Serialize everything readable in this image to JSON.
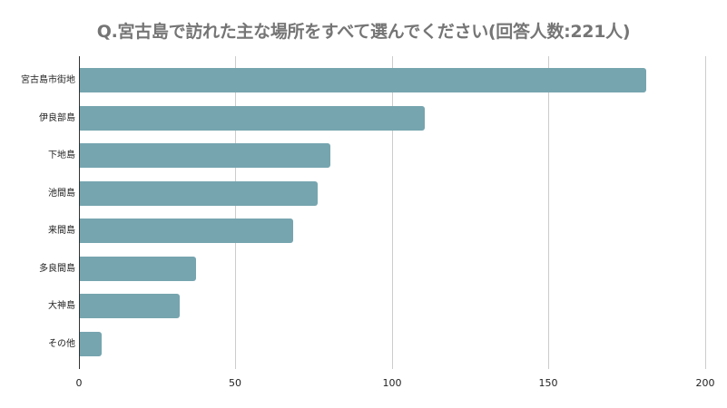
{
  "chart_data": {
    "type": "bar",
    "orientation": "horizontal",
    "title": "Q.宮古島で訪れた主な場所をすべて選んでください(回答人数:221人)",
    "xlabel": "",
    "ylabel": "",
    "categories": [
      "宮古島市街地",
      "伊良部島",
      "下地島",
      "池間島",
      "来間島",
      "多良間島",
      "大神島",
      "その他"
    ],
    "values": [
      181,
      110,
      80,
      76,
      68,
      37,
      32,
      7
    ],
    "xlim": [
      0,
      200
    ],
    "x_ticks": [
      "0",
      "50",
      "100",
      "150",
      "200"
    ],
    "grid": "vertical",
    "bar_color": "#76a5af",
    "legend": null
  }
}
